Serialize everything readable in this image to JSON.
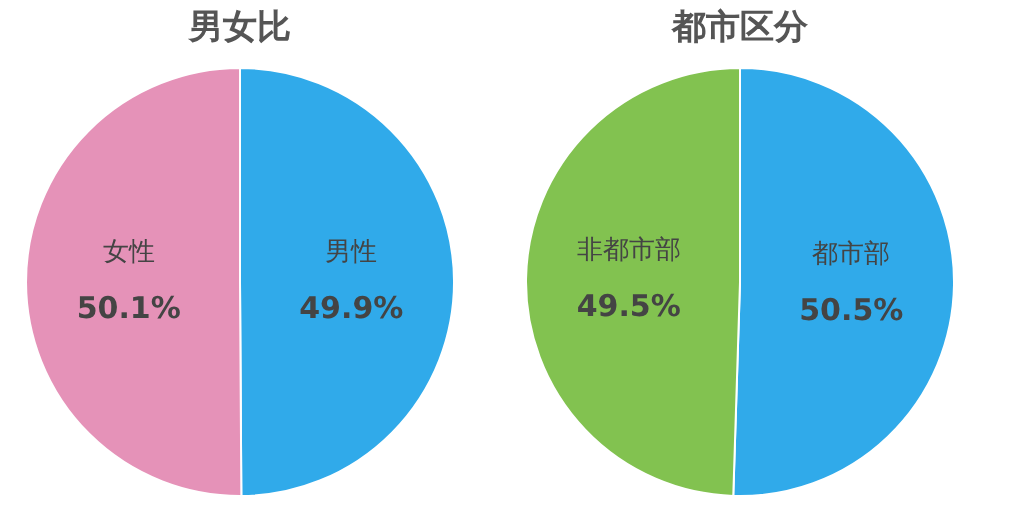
{
  "chart_data": [
    {
      "type": "pie",
      "title": "男女比",
      "categories": [
        "男性",
        "女性"
      ],
      "values": [
        49.9,
        50.1
      ],
      "colors": [
        "#30aaea",
        "#e592b8"
      ],
      "value_labels": [
        "49.9%",
        "50.1%"
      ]
    },
    {
      "type": "pie",
      "title": "都市区分",
      "categories": [
        "都市部",
        "非都市部"
      ],
      "values": [
        50.5,
        49.5
      ],
      "colors": [
        "#30aaea",
        "#82c250"
      ],
      "value_labels": [
        "50.5%",
        "49.5%"
      ]
    }
  ]
}
